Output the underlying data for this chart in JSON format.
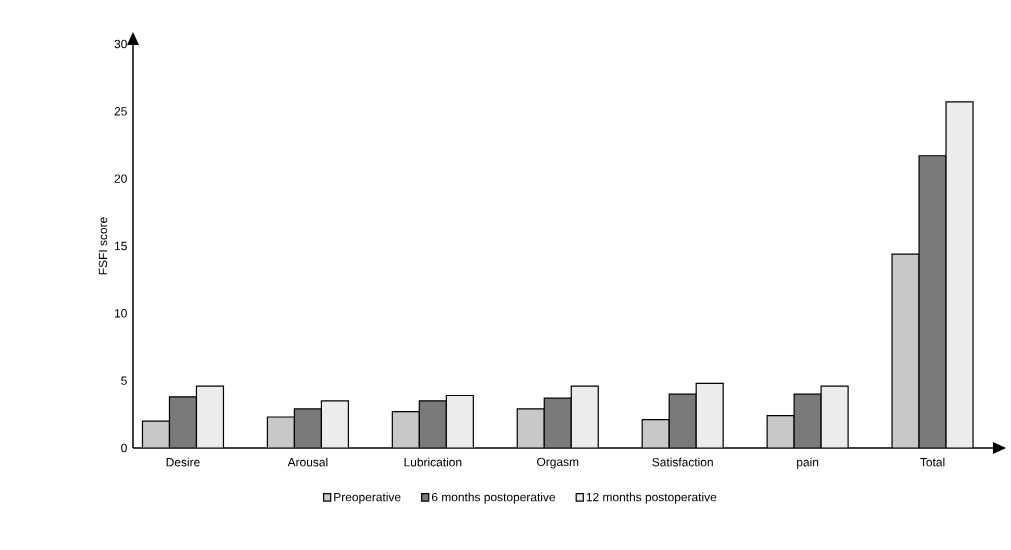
{
  "chart_data": {
    "type": "bar",
    "ylabel": "FSFI score",
    "categories": [
      "Desire",
      "Arousal",
      "Lubrication",
      "Orgasm",
      "Satisfaction",
      "pain",
      "Total"
    ],
    "series": [
      {
        "name": "Preoperative",
        "color": "#c8c8c8",
        "values": [
          2.0,
          2.3,
          2.7,
          2.9,
          2.1,
          2.4,
          14.4
        ]
      },
      {
        "name": "6 months postoperative",
        "color": "#7a7a7a",
        "values": [
          3.8,
          2.9,
          3.5,
          3.7,
          4.0,
          4.0,
          21.7
        ]
      },
      {
        "name": "12 months postoperative",
        "color": "#ececec",
        "values": [
          4.6,
          3.5,
          3.9,
          4.6,
          4.8,
          4.6,
          25.7
        ]
      }
    ],
    "ylim": [
      0,
      30
    ],
    "yticks": [
      0,
      5,
      10,
      15,
      20,
      25,
      30
    ],
    "grid": false,
    "legend": "bottom"
  }
}
